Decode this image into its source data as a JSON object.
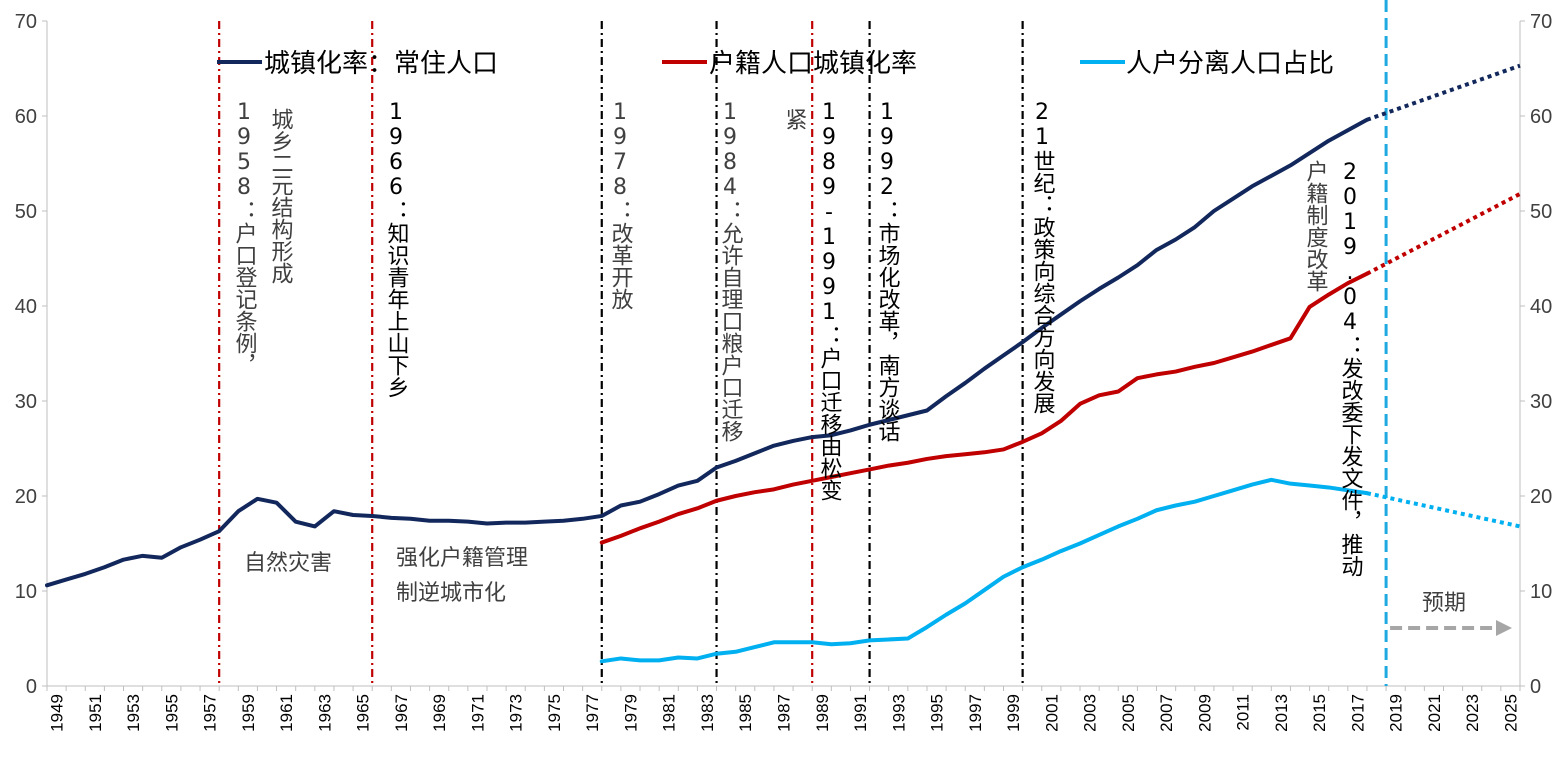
{
  "chart_data": {
    "type": "line",
    "title": "",
    "xlabel": "",
    "ylabel": "",
    "xlim": [
      1949,
      2026
    ],
    "ylim": [
      0,
      70
    ],
    "yticks": [
      0,
      10,
      20,
      30,
      40,
      50,
      60,
      70
    ],
    "xticks": [
      "1949",
      "1951",
      "1953",
      "1955",
      "1957",
      "1959",
      "1961",
      "1963",
      "1965",
      "1967",
      "1969",
      "1971",
      "1973",
      "1975",
      "1977",
      "1979",
      "1981",
      "1983",
      "1985",
      "1987",
      "1989",
      "1991",
      "1993",
      "1995",
      "1997",
      "1999",
      "2001",
      "2003",
      "2005",
      "2007",
      "2009",
      "2011",
      "2013",
      "2015",
      "2017",
      "2019",
      "2021",
      "2023",
      "2025"
    ],
    "grid": false,
    "legend_position": "top",
    "series": [
      {
        "name": "城镇化率：常住人口",
        "color": "#12285c",
        "x": [
          1949,
          1950,
          1951,
          1952,
          1953,
          1954,
          1955,
          1956,
          1957,
          1958,
          1959,
          1960,
          1961,
          1962,
          1963,
          1964,
          1965,
          1966,
          1967,
          1968,
          1969,
          1970,
          1971,
          1972,
          1973,
          1974,
          1975,
          1976,
          1977,
          1978,
          1979,
          1980,
          1981,
          1982,
          1983,
          1984,
          1985,
          1986,
          1987,
          1988,
          1989,
          1990,
          1991,
          1992,
          1993,
          1994,
          1995,
          1996,
          1997,
          1998,
          1999,
          2000,
          2001,
          2002,
          2003,
          2004,
          2005,
          2006,
          2007,
          2008,
          2009,
          2010,
          2011,
          2012,
          2013,
          2014,
          2015,
          2016,
          2017,
          2018
        ],
        "y": [
          10.6,
          11.2,
          11.8,
          12.5,
          13.3,
          13.7,
          13.5,
          14.6,
          15.4,
          16.3,
          18.4,
          19.7,
          19.3,
          17.3,
          16.8,
          18.4,
          18.0,
          17.9,
          17.7,
          17.6,
          17.4,
          17.4,
          17.3,
          17.1,
          17.2,
          17.2,
          17.3,
          17.4,
          17.6,
          17.9,
          19.0,
          19.4,
          20.2,
          21.1,
          21.6,
          23.0,
          23.7,
          24.5,
          25.3,
          25.8,
          26.2,
          26.4,
          26.9,
          27.5,
          28.0,
          28.5,
          29.0,
          30.5,
          31.9,
          33.4,
          34.8,
          36.2,
          37.7,
          39.1,
          40.5,
          41.8,
          43.0,
          44.3,
          45.9,
          47.0,
          48.3,
          50.0,
          51.3,
          52.6,
          53.7,
          54.8,
          56.1,
          57.4,
          58.5,
          59.6
        ],
        "forecast": {
          "x": [
            2018,
            2026
          ],
          "y": [
            59.6,
            65.3
          ],
          "style": "dotted"
        }
      },
      {
        "name": "户籍人口城镇化率",
        "color": "#c00000",
        "x": [
          1978,
          1979,
          1980,
          1981,
          1982,
          1983,
          1984,
          1985,
          1986,
          1987,
          1988,
          1989,
          1990,
          1991,
          1992,
          1993,
          1994,
          1995,
          1996,
          1997,
          1998,
          1999,
          2000,
          2001,
          2002,
          2003,
          2004,
          2005,
          2006,
          2007,
          2008,
          2009,
          2010,
          2011,
          2012,
          2013,
          2014,
          2015,
          2016,
          2017,
          2018
        ],
        "y": [
          15.1,
          15.8,
          16.6,
          17.3,
          18.1,
          18.7,
          19.5,
          20.0,
          20.4,
          20.7,
          21.2,
          21.6,
          22.0,
          22.4,
          22.8,
          23.2,
          23.5,
          23.9,
          24.2,
          24.4,
          24.6,
          24.9,
          25.7,
          26.6,
          27.9,
          29.7,
          30.6,
          31.0,
          32.4,
          32.8,
          33.1,
          33.6,
          34.0,
          34.6,
          35.2,
          35.9,
          36.6,
          39.9,
          41.2,
          42.4,
          43.4
        ],
        "forecast": {
          "x": [
            2018,
            2026
          ],
          "y": [
            43.4,
            51.8
          ],
          "style": "dotted"
        }
      },
      {
        "name": "人户分离人口占比",
        "color": "#00b0f0",
        "x": [
          1978,
          1979,
          1980,
          1981,
          1982,
          1983,
          1984,
          1985,
          1986,
          1987,
          1988,
          1989,
          1990,
          1991,
          1992,
          1993,
          1994,
          1995,
          1996,
          1997,
          1998,
          1999,
          2000,
          2001,
          2002,
          2003,
          2004,
          2005,
          2006,
          2007,
          2008,
          2009,
          2010,
          2011,
          2012,
          2013,
          2014,
          2015,
          2016,
          2017,
          2018
        ],
        "y": [
          2.6,
          2.9,
          2.7,
          2.7,
          3.0,
          2.9,
          3.4,
          3.6,
          4.1,
          4.6,
          4.6,
          4.6,
          4.4,
          4.5,
          4.8,
          4.9,
          5.0,
          6.2,
          7.5,
          8.7,
          10.1,
          11.5,
          12.5,
          13.3,
          14.2,
          15.0,
          15.9,
          16.8,
          17.6,
          18.5,
          19.0,
          19.4,
          20.0,
          20.6,
          21.2,
          21.7,
          21.3,
          21.1,
          20.9,
          20.6,
          20.3
        ],
        "forecast": {
          "x": [
            2018,
            2026
          ],
          "y": [
            20.3,
            16.8
          ],
          "style": "dotted"
        }
      }
    ],
    "vlines": [
      {
        "x": 1958,
        "color": "#c00000",
        "style": "dashdot"
      },
      {
        "x": 1966,
        "color": "#c00000",
        "style": "dashdot"
      },
      {
        "x": 1978,
        "color": "#000000",
        "style": "dashdot"
      },
      {
        "x": 1984,
        "color": "#000000",
        "style": "dashdot"
      },
      {
        "x": 1989,
        "color": "#c00000",
        "style": "dashdot"
      },
      {
        "x": 1992,
        "color": "#000000",
        "style": "dashdot"
      },
      {
        "x": 2000,
        "color": "#000000",
        "style": "dashdot"
      },
      {
        "x": 2019,
        "color": "#1fa9e0",
        "style": "dashed"
      }
    ],
    "annotations": {
      "a1958": "城乡二元结构形成",
      "a1958b": "1958：户口登记条例，",
      "a1966": "1966：知识青年上山下乡",
      "a1978": "1978：改革开放",
      "a1984": "1984：允许自理口粮户口迁移",
      "a1989a": "紧",
      "a1989": "1989-1991：户口迁移由松变",
      "a1992": "1992：市场化改革，南方谈话",
      "a2000": "21世纪：政策向综合方向发展",
      "a2019a": "户籍制度改革",
      "a2019": "2019.04：发改委下发文件，推动",
      "disaster": "自然灾害",
      "control1": "强化户籍管理",
      "control2": "制逆城市化",
      "expect": "预期"
    },
    "expect_arrow_color": "#a6a6a6"
  }
}
